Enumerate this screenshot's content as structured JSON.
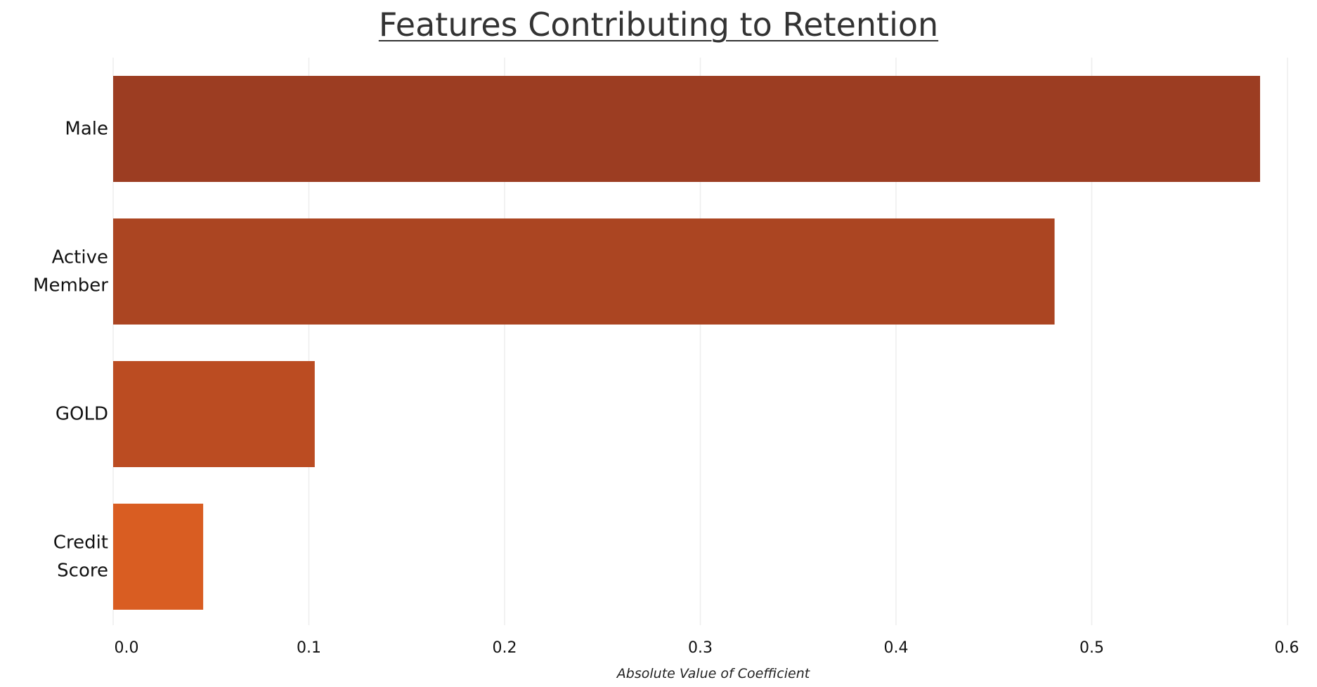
{
  "chart_data": {
    "type": "bar",
    "orientation": "horizontal",
    "title": "Features Contributing to Retention",
    "xlabel": "Absolute Value of Coefficient",
    "ylabel": "",
    "categories": [
      [
        "Male"
      ],
      [
        "Active",
        "Member"
      ],
      [
        "GOLD"
      ],
      [
        "Credit",
        "Score"
      ]
    ],
    "values": [
      0.586,
      0.481,
      0.103,
      0.046
    ],
    "colors": [
      "#9c3d22",
      "#ab4522",
      "#bb4c22",
      "#d95d22"
    ],
    "xlim": [
      0,
      0.6
    ],
    "xticks": [
      "0.0",
      "0.1",
      "0.2",
      "0.3",
      "0.4",
      "0.5",
      "0.6"
    ],
    "grid": "vertical",
    "gridColor": "#eeeeee"
  }
}
